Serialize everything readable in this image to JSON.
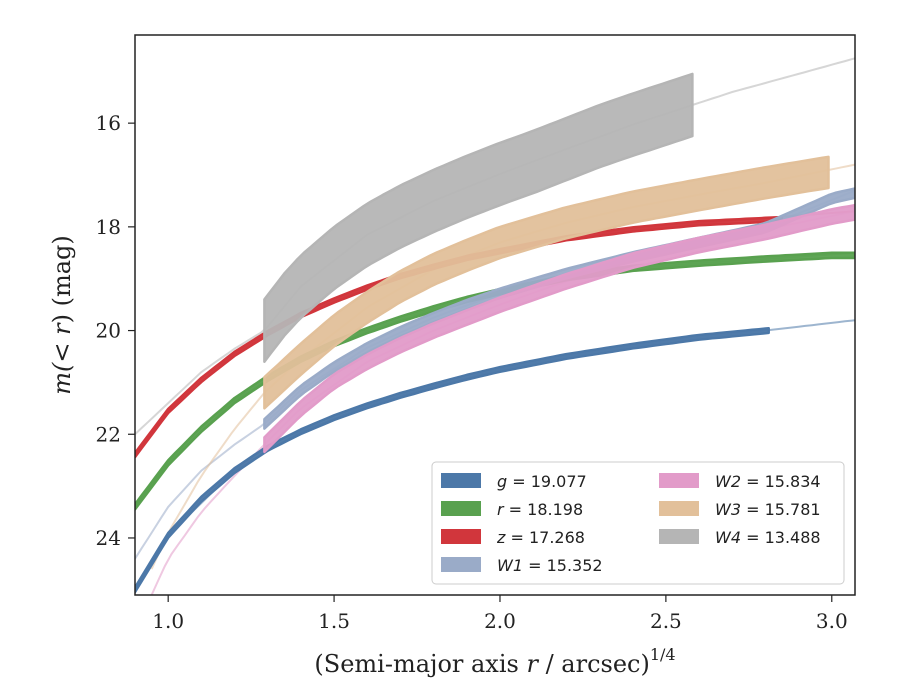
{
  "chart_data": {
    "type": "line",
    "title": "",
    "xlabel_main": "(Semi-major axis ",
    "xlabel_var": "r",
    "xlabel_tail": " / arcsec)",
    "xlabel_exp": "1/4",
    "ylabel_pre": "m(",
    "ylabel_mid": "< r",
    "ylabel_post": ") (mag)",
    "xlim": [
      0.9,
      3.07
    ],
    "ylim": [
      25.1,
      14.3
    ],
    "y_inverted": true,
    "grid": false,
    "legend_position": "lower-right",
    "xticks": [
      1.0,
      1.5,
      2.0,
      2.5,
      3.0
    ],
    "xtick_labels": [
      "1.0",
      "1.5",
      "2.0",
      "2.5",
      "3.0"
    ],
    "yticks": [
      16,
      18,
      20,
      22,
      24
    ],
    "ytick_labels": [
      "16",
      "18",
      "20",
      "22",
      "24"
    ],
    "series": [
      {
        "name": "g = 19.077",
        "var": "g",
        "val": "19.077",
        "color": "#4c78a8",
        "data_range": [
          0.9,
          2.81
        ],
        "data": [
          [
            0.9,
            25.0
          ],
          [
            1.0,
            23.95
          ],
          [
            1.1,
            23.25
          ],
          [
            1.2,
            22.7
          ],
          [
            1.3,
            22.27
          ],
          [
            1.4,
            21.95
          ],
          [
            1.5,
            21.68
          ],
          [
            1.6,
            21.45
          ],
          [
            1.7,
            21.25
          ],
          [
            1.8,
            21.07
          ],
          [
            1.9,
            20.9
          ],
          [
            2.0,
            20.75
          ],
          [
            2.2,
            20.5
          ],
          [
            2.4,
            20.3
          ],
          [
            2.6,
            20.13
          ],
          [
            2.81,
            20.0
          ]
        ],
        "model": [
          [
            0.9,
            25.0
          ],
          [
            1.0,
            23.95
          ],
          [
            1.2,
            22.7
          ],
          [
            1.4,
            21.95
          ],
          [
            1.6,
            21.45
          ],
          [
            1.8,
            21.07
          ],
          [
            2.0,
            20.75
          ],
          [
            2.2,
            20.5
          ],
          [
            2.4,
            20.3
          ],
          [
            2.6,
            20.13
          ],
          [
            2.8,
            20.0
          ],
          [
            3.07,
            19.8
          ]
        ],
        "width_mag": 0.09
      },
      {
        "name": "r = 18.198",
        "var": "r",
        "val": "18.198",
        "color": "#59a14f",
        "data_range": [
          0.9,
          3.07
        ],
        "data": [
          [
            0.9,
            23.4
          ],
          [
            1.0,
            22.55
          ],
          [
            1.1,
            21.9
          ],
          [
            1.2,
            21.35
          ],
          [
            1.3,
            20.92
          ],
          [
            1.4,
            20.55
          ],
          [
            1.5,
            20.25
          ],
          [
            1.6,
            20.0
          ],
          [
            1.7,
            19.78
          ],
          [
            1.8,
            19.58
          ],
          [
            1.9,
            19.4
          ],
          [
            2.0,
            19.25
          ],
          [
            2.2,
            18.98
          ],
          [
            2.4,
            18.8
          ],
          [
            2.6,
            18.7
          ],
          [
            2.8,
            18.62
          ],
          [
            3.0,
            18.55
          ],
          [
            3.07,
            18.55
          ]
        ],
        "model": [
          [
            0.9,
            23.4
          ],
          [
            1.0,
            22.55
          ],
          [
            1.2,
            21.35
          ],
          [
            1.4,
            20.55
          ],
          [
            1.6,
            20.0
          ],
          [
            1.8,
            19.58
          ],
          [
            2.0,
            19.25
          ],
          [
            2.2,
            18.98
          ],
          [
            2.4,
            18.8
          ],
          [
            2.6,
            18.7
          ],
          [
            2.8,
            18.62
          ],
          [
            3.07,
            18.5
          ]
        ],
        "width_mag": 0.1
      },
      {
        "name": "z = 17.268",
        "var": "z",
        "val": "17.268",
        "color": "#d1363c",
        "data_range": [
          0.9,
          2.85
        ],
        "data": [
          [
            0.9,
            22.4
          ],
          [
            1.0,
            21.55
          ],
          [
            1.1,
            20.95
          ],
          [
            1.2,
            20.45
          ],
          [
            1.3,
            20.05
          ],
          [
            1.4,
            19.7
          ],
          [
            1.5,
            19.42
          ],
          [
            1.6,
            19.17
          ],
          [
            1.7,
            18.95
          ],
          [
            1.8,
            18.77
          ],
          [
            1.9,
            18.6
          ],
          [
            2.0,
            18.47
          ],
          [
            2.2,
            18.22
          ],
          [
            2.4,
            18.05
          ],
          [
            2.6,
            17.93
          ],
          [
            2.85,
            17.85
          ]
        ],
        "model": [
          [
            0.9,
            22.4
          ],
          [
            1.0,
            21.55
          ],
          [
            1.2,
            20.45
          ],
          [
            1.4,
            19.7
          ],
          [
            1.6,
            19.17
          ],
          [
            1.8,
            18.77
          ],
          [
            2.0,
            18.47
          ],
          [
            2.2,
            18.22
          ],
          [
            2.4,
            18.05
          ],
          [
            2.6,
            17.93
          ],
          [
            2.8,
            17.83
          ],
          [
            3.07,
            17.7
          ]
        ],
        "width_mag": 0.08
      },
      {
        "name": "W1 = 15.352",
        "var": "W1",
        "val": "15.352",
        "color": "#9aabc8",
        "data_range": [
          1.29,
          3.07
        ],
        "data": [
          [
            1.29,
            21.8
          ],
          [
            1.4,
            21.15
          ],
          [
            1.5,
            20.7
          ],
          [
            1.6,
            20.33
          ],
          [
            1.7,
            20.02
          ],
          [
            1.8,
            19.75
          ],
          [
            1.9,
            19.5
          ],
          [
            2.0,
            19.28
          ],
          [
            2.2,
            18.9
          ],
          [
            2.4,
            18.58
          ],
          [
            2.6,
            18.3
          ],
          [
            2.8,
            18.02
          ],
          [
            3.0,
            17.45
          ],
          [
            3.07,
            17.35
          ]
        ],
        "model": [
          [
            0.9,
            24.4
          ],
          [
            1.0,
            23.4
          ],
          [
            1.1,
            22.7
          ],
          [
            1.2,
            22.2
          ],
          [
            1.29,
            21.8
          ],
          [
            1.4,
            21.15
          ],
          [
            1.6,
            20.33
          ],
          [
            1.8,
            19.75
          ],
          [
            2.0,
            19.28
          ],
          [
            2.2,
            18.9
          ],
          [
            2.4,
            18.58
          ],
          [
            2.6,
            18.3
          ],
          [
            2.8,
            18.0
          ],
          [
            3.07,
            17.3
          ]
        ],
        "width_mag": 0.18
      },
      {
        "name": "W2 = 15.834",
        "var": "W2",
        "val": "15.834",
        "color": "#e29bc9",
        "data_range": [
          1.29,
          3.07
        ],
        "data": [
          [
            1.29,
            22.2
          ],
          [
            1.4,
            21.5
          ],
          [
            1.5,
            20.98
          ],
          [
            1.6,
            20.6
          ],
          [
            1.7,
            20.28
          ],
          [
            1.8,
            20.0
          ],
          [
            1.9,
            19.75
          ],
          [
            2.0,
            19.5
          ],
          [
            2.2,
            19.05
          ],
          [
            2.4,
            18.65
          ],
          [
            2.6,
            18.35
          ],
          [
            2.8,
            18.1
          ],
          [
            3.0,
            17.8
          ],
          [
            3.07,
            17.72
          ]
        ],
        "model": [
          [
            0.95,
            25.1
          ],
          [
            1.0,
            24.4
          ],
          [
            1.1,
            23.5
          ],
          [
            1.2,
            22.8
          ],
          [
            1.29,
            22.2
          ],
          [
            1.4,
            21.5
          ],
          [
            1.6,
            20.6
          ],
          [
            1.8,
            20.0
          ],
          [
            2.0,
            19.5
          ],
          [
            2.2,
            19.05
          ],
          [
            2.4,
            18.65
          ],
          [
            2.6,
            18.35
          ],
          [
            2.8,
            18.05
          ],
          [
            3.07,
            17.7
          ]
        ],
        "width_mag": 0.28
      },
      {
        "name": "W3 = 15.781",
        "var": "W3",
        "val": "15.781",
        "color": "#e2c09a",
        "data_range": [
          1.29,
          2.99
        ],
        "data": [
          [
            1.29,
            21.2
          ],
          [
            1.4,
            20.55
          ],
          [
            1.5,
            20.0
          ],
          [
            1.6,
            19.55
          ],
          [
            1.7,
            19.15
          ],
          [
            1.8,
            18.82
          ],
          [
            1.9,
            18.55
          ],
          [
            2.0,
            18.3
          ],
          [
            2.2,
            17.92
          ],
          [
            2.4,
            17.62
          ],
          [
            2.6,
            17.38
          ],
          [
            2.8,
            17.15
          ],
          [
            2.99,
            16.95
          ]
        ],
        "model": [
          [
            0.95,
            24.6
          ],
          [
            1.0,
            23.9
          ],
          [
            1.1,
            22.8
          ],
          [
            1.2,
            21.9
          ],
          [
            1.29,
            21.2
          ],
          [
            1.4,
            20.55
          ],
          [
            1.6,
            19.55
          ],
          [
            1.8,
            18.82
          ],
          [
            2.0,
            18.3
          ],
          [
            2.2,
            17.92
          ],
          [
            2.4,
            17.62
          ],
          [
            2.6,
            17.38
          ],
          [
            2.8,
            17.15
          ],
          [
            3.07,
            16.8
          ]
        ],
        "width_mag": 0.6
      },
      {
        "name": "W4 = 13.488",
        "var": "W4",
        "val": "13.488",
        "color": "#b5b5b5",
        "data_range": [
          1.29,
          2.58
        ],
        "data": [
          [
            1.29,
            20.0
          ],
          [
            1.35,
            19.5
          ],
          [
            1.4,
            19.15
          ],
          [
            1.5,
            18.6
          ],
          [
            1.6,
            18.15
          ],
          [
            1.7,
            17.8
          ],
          [
            1.8,
            17.5
          ],
          [
            1.9,
            17.23
          ],
          [
            2.0,
            16.98
          ],
          [
            2.1,
            16.75
          ],
          [
            2.2,
            16.5
          ],
          [
            2.3,
            16.25
          ],
          [
            2.4,
            16.03
          ],
          [
            2.5,
            15.82
          ],
          [
            2.58,
            15.65
          ]
        ],
        "model": [
          [
            0.9,
            22.0
          ],
          [
            1.0,
            21.4
          ],
          [
            1.1,
            20.8
          ],
          [
            1.2,
            20.35
          ],
          [
            1.29,
            20.0
          ],
          [
            1.4,
            19.15
          ],
          [
            1.6,
            18.15
          ],
          [
            1.8,
            17.5
          ],
          [
            2.0,
            16.98
          ],
          [
            2.2,
            16.5
          ],
          [
            2.4,
            16.03
          ],
          [
            2.58,
            15.65
          ],
          [
            2.7,
            15.4
          ],
          [
            2.9,
            15.05
          ],
          [
            3.07,
            14.75
          ]
        ],
        "width_mag": 1.2
      }
    ]
  }
}
